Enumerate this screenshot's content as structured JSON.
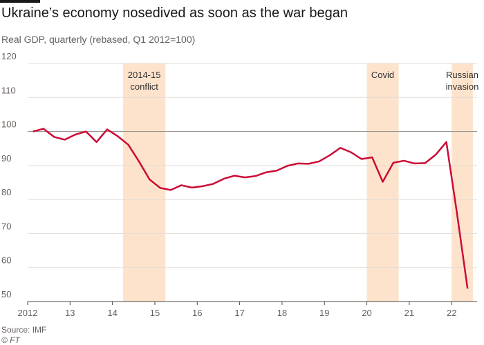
{
  "chart_data": {
    "type": "line",
    "title": "Ukraine’s economy nosedived as soon as the war began",
    "subtitle": "Real GDP, quarterly (rebased, Q1 2012=100)",
    "source": "Source: IMF",
    "credit": "© FT",
    "x": [
      2012.125,
      2012.375,
      2012.625,
      2012.875,
      2013.125,
      2013.375,
      2013.625,
      2013.875,
      2014.125,
      2014.375,
      2014.625,
      2014.875,
      2015.125,
      2015.375,
      2015.625,
      2015.875,
      2016.125,
      2016.375,
      2016.625,
      2016.875,
      2017.125,
      2017.375,
      2017.625,
      2017.875,
      2018.125,
      2018.375,
      2018.625,
      2018.875,
      2019.125,
      2019.375,
      2019.625,
      2019.875,
      2020.125,
      2020.375,
      2020.625,
      2020.875,
      2021.125,
      2021.375,
      2021.625,
      2021.875,
      2022.125,
      2022.375
    ],
    "series": [
      {
        "name": "Real GDP",
        "color": "#cc0a35",
        "values": [
          100,
          100.8,
          98.4,
          97.6,
          99.1,
          100,
          96.9,
          100.6,
          98.6,
          96.1,
          91.2,
          85.9,
          83.4,
          82.8,
          84.2,
          83.5,
          83.9,
          84.6,
          86.1,
          87,
          86.5,
          86.9,
          88,
          88.5,
          89.9,
          90.6,
          90.5,
          91.2,
          93,
          95.2,
          93.9,
          91.9,
          92.4,
          85.2,
          90.8,
          91.4,
          90.6,
          90.7,
          93.2,
          96.9,
          76,
          53.8
        ]
      }
    ],
    "bands": [
      {
        "start": 2014.25,
        "end": 2015.25,
        "label": [
          "2014-15",
          "conflict"
        ]
      },
      {
        "start": 2020,
        "end": 2020.75,
        "label": [
          "Covid"
        ]
      },
      {
        "start": 2022,
        "end": 2022.5,
        "label": [
          "Russian",
          "invasion"
        ]
      }
    ],
    "band_color": "#fde3cc",
    "xlim": [
      2012,
      2022.6
    ],
    "xticks": [
      2012,
      {
        "value": 2013,
        "label": "13"
      },
      {
        "value": 2014,
        "label": "14"
      },
      {
        "value": 2015,
        "label": "15"
      },
      {
        "value": 2016,
        "label": "16"
      },
      {
        "value": 2017,
        "label": "17"
      },
      {
        "value": 2018,
        "label": "18"
      },
      {
        "value": 2019,
        "label": "19"
      },
      {
        "value": 2020,
        "label": "20"
      },
      {
        "value": 2021,
        "label": "21"
      },
      {
        "value": 2022,
        "label": "22"
      }
    ],
    "ylim": [
      50,
      120
    ],
    "yticks": [
      50,
      60,
      70,
      80,
      90,
      100,
      110,
      120
    ],
    "reference_line": 100,
    "grid": true
  }
}
